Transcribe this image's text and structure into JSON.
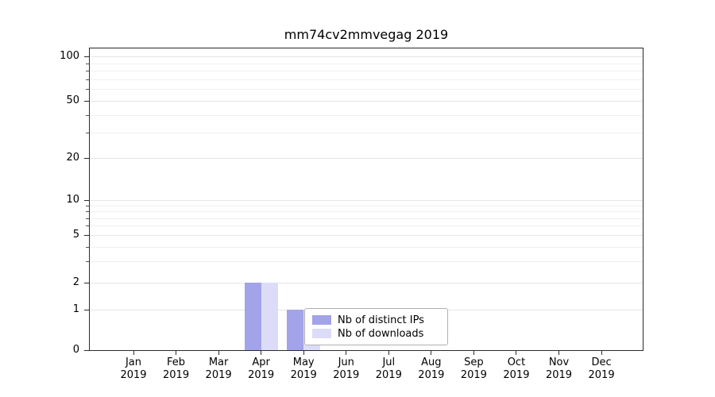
{
  "chart_data": {
    "type": "bar",
    "title": "mm74cv2mmvegag 2019",
    "xlabel": "",
    "ylabel": "",
    "categories": [
      "Jan",
      "Feb",
      "Mar",
      "Apr",
      "May",
      "Jun",
      "Jul",
      "Aug",
      "Sep",
      "Oct",
      "Nov",
      "Dec"
    ],
    "x_tick_year": "2019",
    "series": [
      {
        "name": "Nb of distinct IPs",
        "color": "#a3a3ea",
        "values": [
          0,
          0,
          0,
          2,
          1,
          0,
          0,
          0,
          0,
          0,
          0,
          0
        ]
      },
      {
        "name": "Nb of downloads",
        "color": "#dcdcf8",
        "values": [
          0,
          0,
          0,
          2,
          1,
          0,
          0,
          0,
          0,
          0,
          0,
          0
        ]
      }
    ],
    "y_tick_values": [
      100,
      50,
      20,
      10,
      5,
      2,
      1,
      0
    ],
    "minor_grid_values": [
      3,
      4,
      6,
      7,
      8,
      9,
      30,
      40,
      60,
      70,
      80,
      90
    ],
    "ylim": [
      0,
      100
    ],
    "scale": "log-like (0,1,2,5,10,20,50,100)",
    "grid": true,
    "legend": {
      "position": "lower-center",
      "entries": [
        "Nb of distinct IPs",
        "Nb of downloads"
      ],
      "note": "legend box partially covers the May downloads bar"
    }
  }
}
